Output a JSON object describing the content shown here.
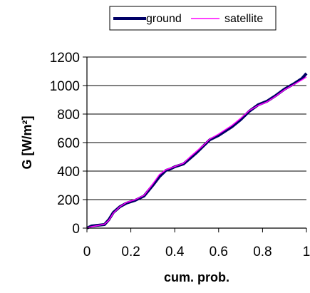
{
  "chart_data": {
    "type": "line",
    "xlabel": "cum. prob.",
    "ylabel": "G [W/m²]",
    "xlim": [
      0,
      1
    ],
    "ylim": [
      0,
      1200
    ],
    "x_ticks": [
      "0",
      "0.2",
      "0.4",
      "0.6",
      "0.8",
      "1"
    ],
    "y_ticks": [
      "0",
      "200",
      "400",
      "600",
      "800",
      "1000",
      "1200"
    ],
    "grid": "horizontal",
    "legend_position": "top",
    "series": [
      {
        "name": "ground",
        "color": "#000066",
        "x": [
          0.0,
          0.02,
          0.05,
          0.08,
          0.1,
          0.12,
          0.15,
          0.18,
          0.22,
          0.26,
          0.3,
          0.33,
          0.36,
          0.38,
          0.4,
          0.44,
          0.47,
          0.5,
          0.53,
          0.56,
          0.6,
          0.63,
          0.66,
          0.7,
          0.74,
          0.78,
          0.82,
          0.86,
          0.9,
          0.94,
          0.98,
          1.0
        ],
        "y": [
          0,
          15,
          20,
          25,
          60,
          110,
          150,
          175,
          195,
          225,
          300,
          360,
          405,
          415,
          430,
          450,
          490,
          530,
          575,
          620,
          650,
          680,
          710,
          760,
          820,
          865,
          890,
          930,
          975,
          1010,
          1050,
          1085
        ]
      },
      {
        "name": "satellite",
        "color": "#ff00ff",
        "x": [
          0.0,
          0.02,
          0.05,
          0.08,
          0.1,
          0.12,
          0.15,
          0.18,
          0.22,
          0.26,
          0.3,
          0.33,
          0.36,
          0.38,
          0.4,
          0.44,
          0.47,
          0.5,
          0.53,
          0.56,
          0.6,
          0.63,
          0.66,
          0.7,
          0.74,
          0.78,
          0.82,
          0.86,
          0.9,
          0.94,
          0.98,
          1.0
        ],
        "y": [
          0,
          10,
          18,
          28,
          55,
          105,
          150,
          180,
          200,
          230,
          310,
          375,
          410,
          420,
          432,
          455,
          500,
          540,
          580,
          625,
          660,
          690,
          720,
          770,
          825,
          860,
          885,
          925,
          970,
          1005,
          1040,
          1060
        ]
      }
    ]
  }
}
